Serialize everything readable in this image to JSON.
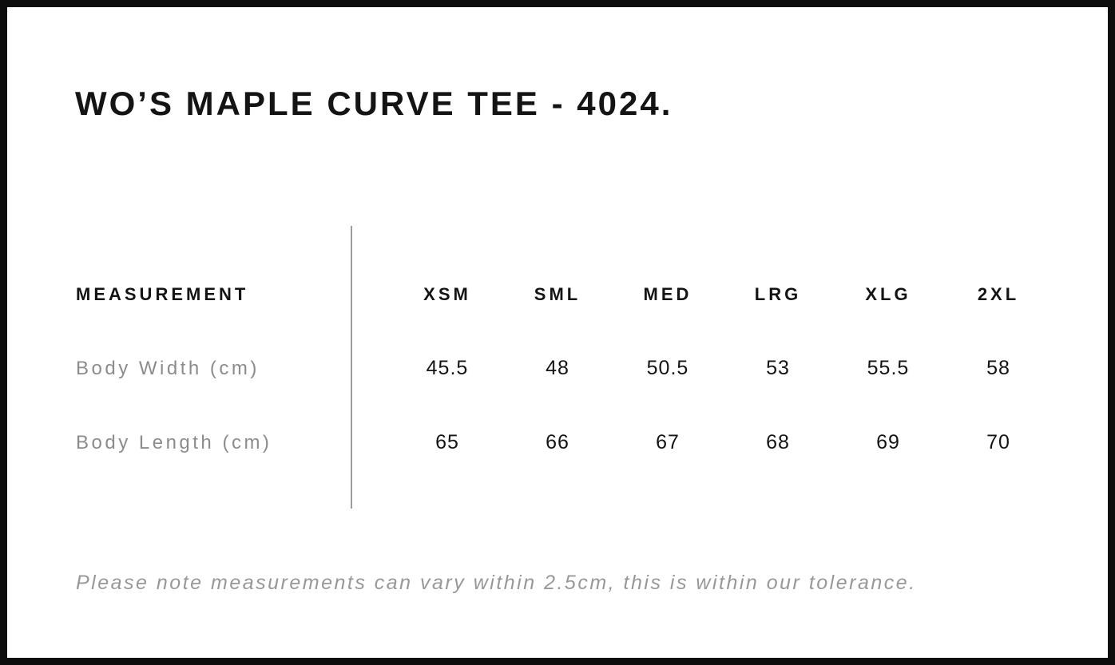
{
  "page": {
    "title": "WO’S MAPLE CURVE TEE - 4024.",
    "note": "Please note measurements can vary within 2.5cm, this is within our tolerance."
  },
  "size_chart": {
    "measurement_header": "MEASUREMENT",
    "sizes": [
      "XSM",
      "SML",
      "MED",
      "LRG",
      "XLG",
      "2XL"
    ],
    "rows": [
      {
        "label": "Body Width (cm)",
        "values": [
          "45.5",
          "48",
          "50.5",
          "53",
          "55.5",
          "58"
        ]
      },
      {
        "label": "Body Length (cm)",
        "values": [
          "65",
          "66",
          "67",
          "68",
          "69",
          "70"
        ]
      }
    ]
  },
  "chart_data": {
    "type": "table",
    "title": "WO’S MAPLE CURVE TEE - 4024.",
    "columns": [
      "MEASUREMENT",
      "XSM",
      "SML",
      "MED",
      "LRG",
      "XLG",
      "2XL"
    ],
    "rows": [
      [
        "Body Width (cm)",
        45.5,
        48,
        50.5,
        53,
        55.5,
        58
      ],
      [
        "Body Length (cm)",
        65,
        66,
        67,
        68,
        69,
        70
      ]
    ],
    "note": "Please note measurements can vary within 2.5cm, this is within our tolerance.",
    "layout": {
      "divider_between_labels_and_values": true,
      "grid": "off"
    }
  },
  "colors": {
    "frame_black": "#0d0d0d",
    "text_black": "#141414",
    "label_gray": "#8c8c8c",
    "divider_gray": "#9c9c9c",
    "note_gray": "#989898"
  }
}
